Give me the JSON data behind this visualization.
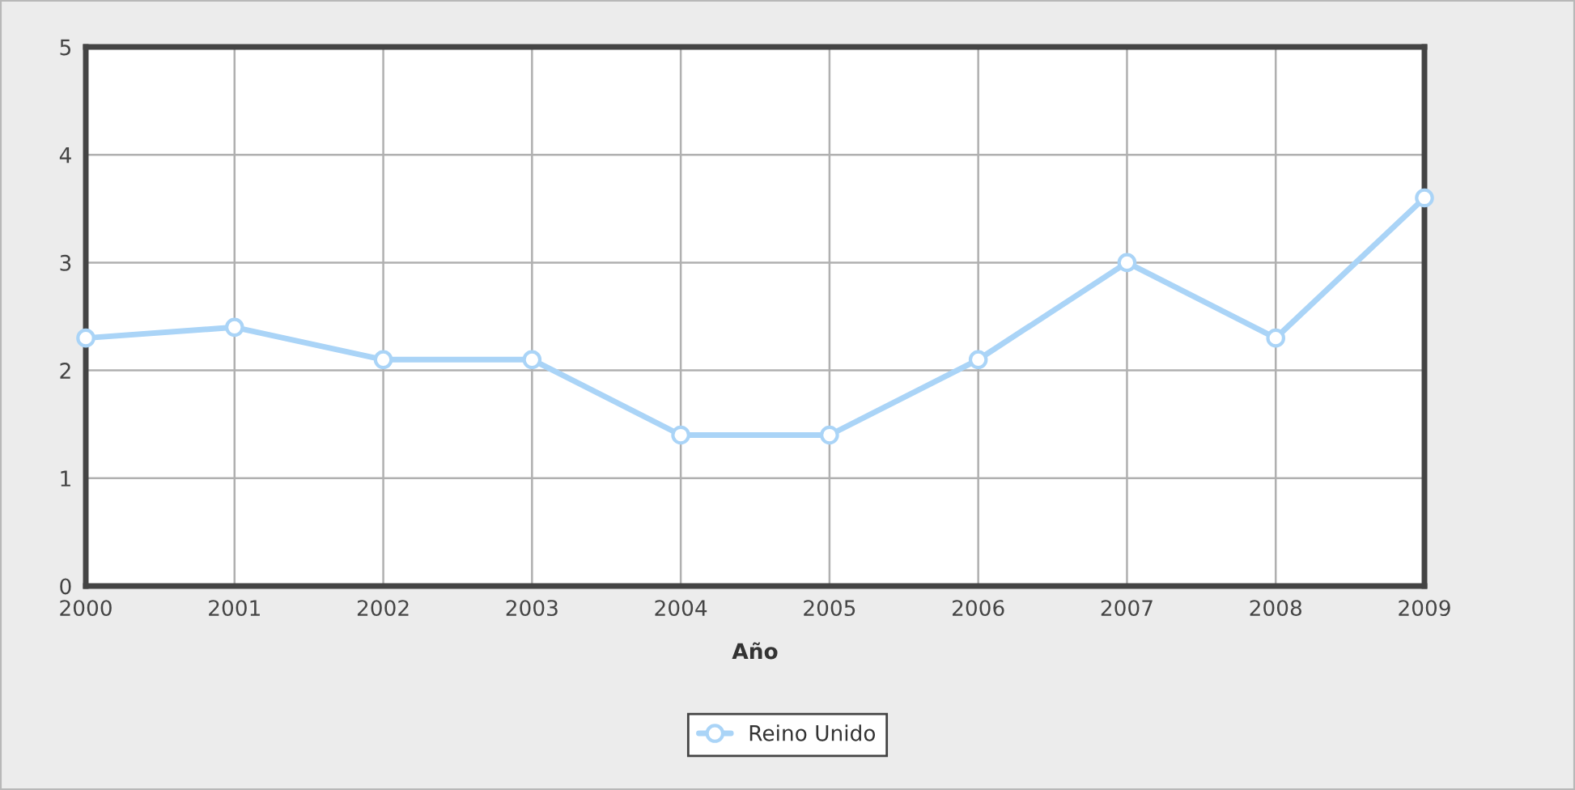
{
  "chart_data": {
    "type": "line",
    "xlabel": "Año",
    "x": [
      2000,
      2001,
      2002,
      2003,
      2004,
      2005,
      2006,
      2007,
      2008,
      2009
    ],
    "series": [
      {
        "name": "Reino Unido",
        "color": "#aad4f7",
        "values": [
          2.3,
          2.4,
          2.1,
          2.1,
          1.4,
          1.4,
          2.1,
          3.0,
          2.3,
          3.6
        ]
      }
    ],
    "xlim": [
      2000,
      2009
    ],
    "xticks": [
      2000,
      2001,
      2002,
      2003,
      2004,
      2005,
      2006,
      2007,
      2008,
      2009
    ],
    "ylim": [
      0,
      5
    ],
    "yticks": [
      0,
      1,
      2,
      3,
      4,
      5
    ],
    "grid": true,
    "legend": "bottom",
    "marker": "circle",
    "line_style": "solid"
  }
}
